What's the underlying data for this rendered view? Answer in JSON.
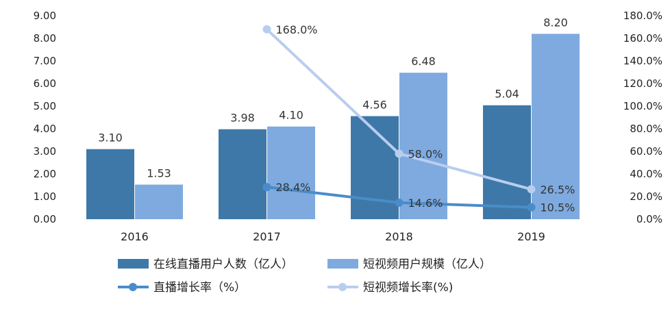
{
  "chart_data": {
    "type": "bar",
    "categories": [
      "2016",
      "2017",
      "2018",
      "2019"
    ],
    "series": [
      {
        "name": "在线直播用户人数（亿人）",
        "type": "bar",
        "axis": "left",
        "color": "#3e78a8",
        "values": [
          3.1,
          3.98,
          4.56,
          5.04
        ],
        "labels": [
          "3.10",
          "3.98",
          "4.56",
          "5.04"
        ]
      },
      {
        "name": "短视频用户规模（亿人）",
        "type": "bar",
        "axis": "left",
        "color": "#7eaadf",
        "values": [
          1.53,
          4.1,
          6.48,
          8.2
        ],
        "labels": [
          "1.53",
          "4.10",
          "6.48",
          "8.20"
        ]
      },
      {
        "name": "直播增长率（%）",
        "type": "line",
        "axis": "right",
        "color": "#4a8cc9",
        "values": [
          null,
          28.4,
          14.6,
          10.5
        ],
        "labels": [
          "",
          "28.4%",
          "14.6%",
          "10.5%"
        ]
      },
      {
        "name": "短视频增长率(%)",
        "type": "line",
        "axis": "right",
        "color": "#b9cdef",
        "values": [
          null,
          168.0,
          58.0,
          26.5
        ],
        "labels": [
          "",
          "168.0%",
          "58.0%",
          "26.5%"
        ]
      }
    ],
    "y_left": {
      "min": 0,
      "max": 9,
      "ticks": [
        "0.00",
        "1.00",
        "2.00",
        "3.00",
        "4.00",
        "5.00",
        "6.00",
        "7.00",
        "8.00",
        "9.00"
      ]
    },
    "y_right": {
      "min": 0,
      "max": 180,
      "ticks": [
        "0.0%",
        "20.0%",
        "40.0%",
        "60.0%",
        "80.0%",
        "100.0%",
        "120.0%",
        "140.0%",
        "160.0%",
        "180.0%"
      ]
    },
    "grid": false,
    "legend_position": "bottom"
  }
}
